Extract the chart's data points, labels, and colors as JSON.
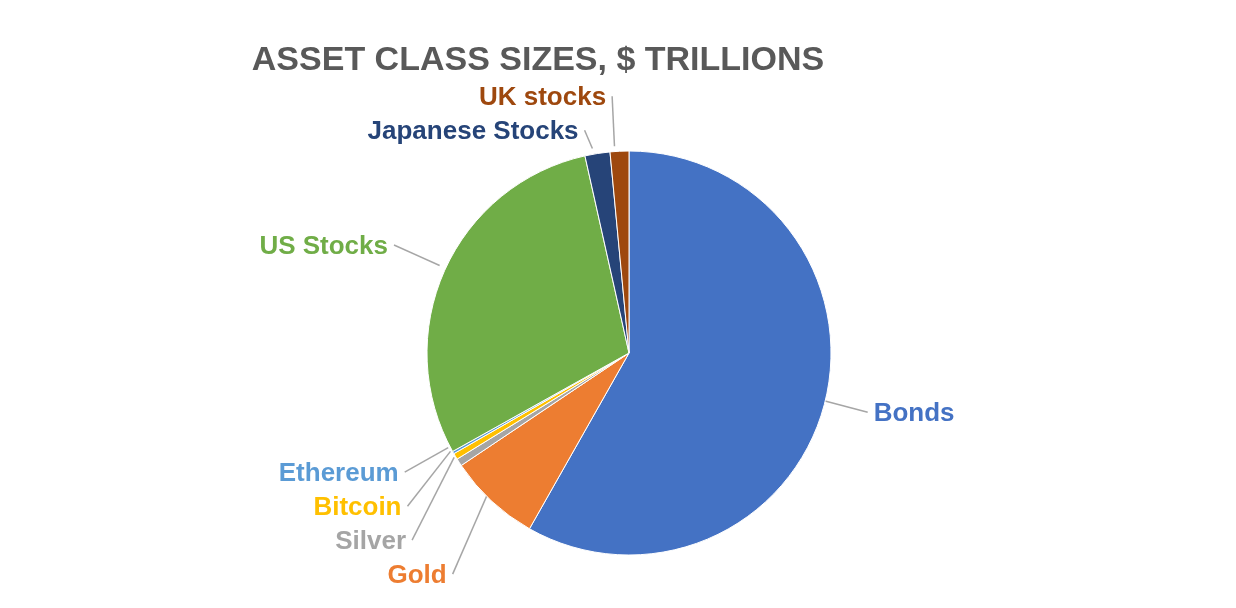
{
  "chart_data": {
    "type": "pie",
    "title": "ASSET CLASS SIZES, $ TRILLIONS",
    "categories": [
      "Bonds",
      "Gold",
      "Silver",
      "Bitcoin",
      "Ethereum",
      "US Stocks",
      "Japanese Stocks",
      "UK stocks"
    ],
    "values": [
      58.2,
      7.4,
      0.6,
      0.5,
      0.2,
      29.6,
      2.0,
      1.5
    ],
    "colors": [
      "#4472c4",
      "#ed7d31",
      "#a5a5a5",
      "#ffc000",
      "#5b9bd5",
      "#70ad47",
      "#264478",
      "#9e480e"
    ],
    "legend": false
  }
}
